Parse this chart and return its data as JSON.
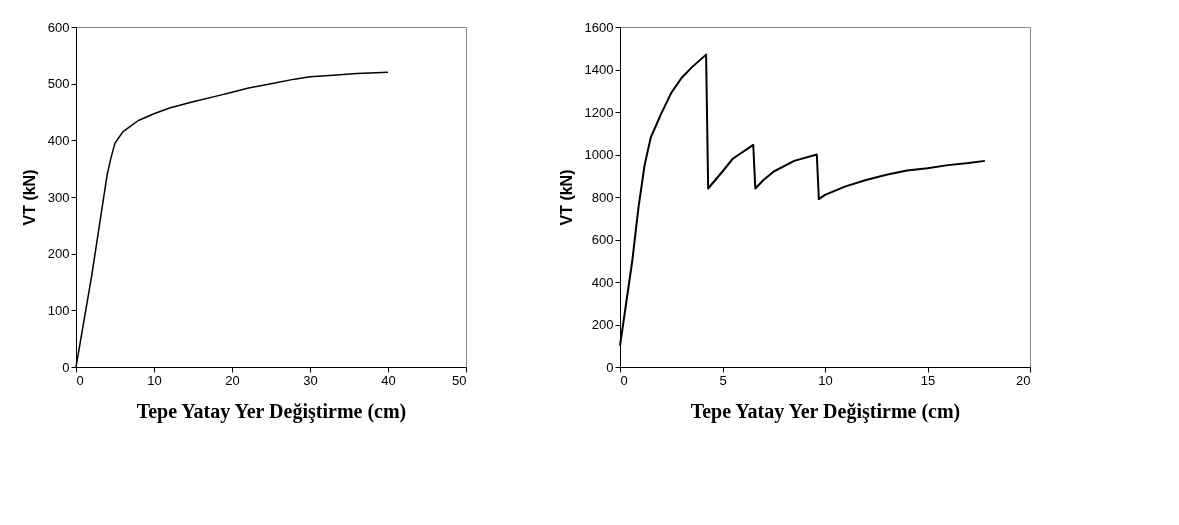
{
  "chart_data": [
    {
      "type": "line",
      "xlabel": "Tepe Yatay Yer Değiştirme (cm)",
      "ylabel": "VT (kN)",
      "xlim": [
        0,
        50
      ],
      "ylim": [
        0,
        600
      ],
      "xticks": [
        0,
        10,
        20,
        30,
        40,
        50
      ],
      "yticks": [
        0,
        100,
        200,
        300,
        400,
        500,
        600
      ],
      "grid": false,
      "series": [
        {
          "color": "#000000",
          "x": [
            0,
            0.5,
            1,
            2,
            3,
            4,
            4.5,
            5,
            5.5,
            6,
            7,
            8,
            10,
            12,
            15,
            18,
            20,
            22,
            25,
            28,
            30,
            33,
            36,
            40
          ],
          "values": [
            0,
            40,
            80,
            160,
            250,
            340,
            370,
            395,
            405,
            415,
            425,
            435,
            447,
            457,
            468,
            478,
            485,
            492,
            500,
            508,
            512,
            515,
            518,
            520
          ]
        }
      ]
    },
    {
      "type": "line",
      "xlabel": "Tepe Yatay Yer Değiştirme (cm)",
      "ylabel": "VT (kN)",
      "xlim": [
        0,
        20
      ],
      "ylim": [
        0,
        1600
      ],
      "xticks": [
        0,
        5,
        10,
        15,
        20
      ],
      "yticks": [
        0,
        200,
        400,
        600,
        800,
        1000,
        1200,
        1400,
        1600
      ],
      "grid": false,
      "series": [
        {
          "color": "#000000",
          "x": [
            0,
            0.3,
            0.6,
            0.9,
            1.2,
            1.5,
            2,
            2.5,
            3,
            3.5,
            4.2,
            4.3,
            5,
            5.5,
            6.5,
            6.6,
            7,
            7.5,
            8.5,
            9.6,
            9.7,
            10,
            11,
            12,
            13,
            14,
            15,
            16,
            17,
            17.8
          ],
          "values": [
            100,
            300,
            500,
            750,
            950,
            1080,
            1190,
            1290,
            1360,
            1410,
            1470,
            840,
            920,
            980,
            1045,
            840,
            880,
            920,
            970,
            1000,
            790,
            810,
            850,
            880,
            905,
            925,
            935,
            950,
            960,
            970
          ]
        }
      ]
    }
  ]
}
